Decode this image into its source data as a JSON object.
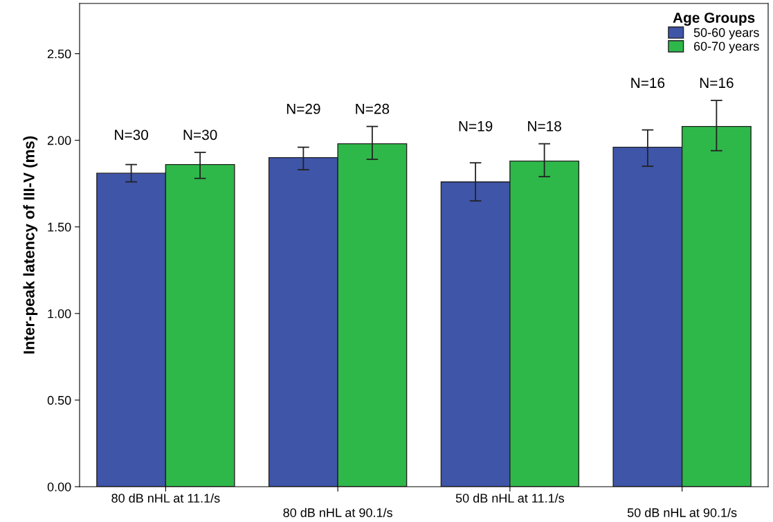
{
  "chart_data": {
    "type": "bar",
    "ylabel": "Inter-peak latency of III-V (ms)",
    "legend_title": "Age Groups",
    "categories": [
      "80 dB nHL at 11.1/s",
      "80 dB nHL at 90.1/s",
      "50 dB nHL at 11.1/s",
      "50 dB nHL at 90.1/s"
    ],
    "series": [
      {
        "name": "50-60 years",
        "color": "#3f55a8",
        "values": [
          1.81,
          1.9,
          1.76,
          1.96
        ],
        "errors": [
          [
            1.76,
            1.86
          ],
          [
            1.83,
            1.96
          ],
          [
            1.65,
            1.87
          ],
          [
            1.85,
            2.06
          ]
        ]
      },
      {
        "name": "60-70 years",
        "color": "#2fb84a",
        "values": [
          1.86,
          1.98,
          1.88,
          2.08
        ],
        "errors": [
          [
            1.78,
            1.93
          ],
          [
            1.89,
            2.08
          ],
          [
            1.79,
            1.98
          ],
          [
            1.94,
            2.23
          ]
        ]
      }
    ],
    "annotations": [
      "N=30",
      "N=30",
      "N=29",
      "N=28",
      "N=19",
      "N=18",
      "N=16",
      "N=16"
    ],
    "ylim": [
      0,
      2.79
    ],
    "yticks": [
      {
        "value": 0,
        "label": "0.00"
      },
      {
        "value": 0.5,
        "label": "0.50"
      },
      {
        "value": 1,
        "label": "1.00"
      },
      {
        "value": 1.5,
        "label": "1.50"
      },
      {
        "value": 2,
        "label": "2.00"
      },
      {
        "value": 2.5,
        "label": "2.50"
      }
    ],
    "grid": false,
    "legend": "top right"
  }
}
